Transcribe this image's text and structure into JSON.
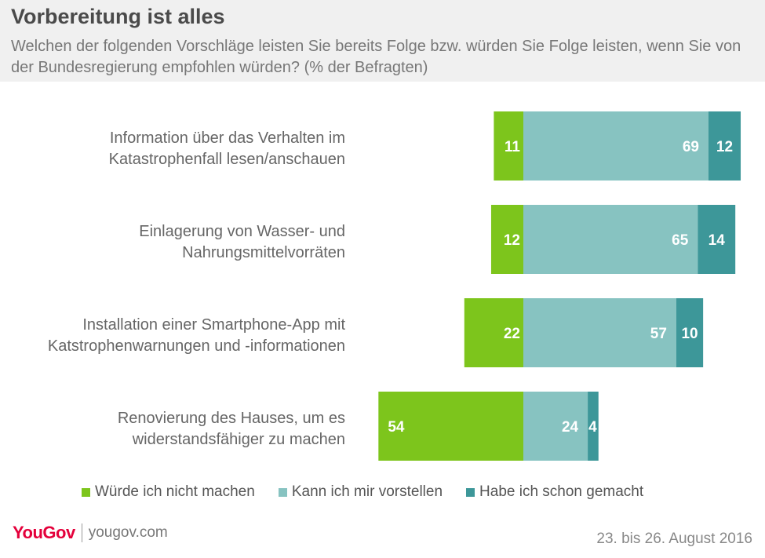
{
  "header": {
    "title": "Vorbereitung ist alles",
    "subtitle": "Welchen der folgenden Vorschläge leisten Sie bereits Folge bzw. würden Sie Folge leisten, wenn Sie von der Bundesregierung empfohlen würden? (% der Befragten)"
  },
  "chart_data": {
    "type": "bar",
    "orientation": "horizontal",
    "stacked": true,
    "categories": [
      [
        "Information über das Verhalten im",
        "Katastrophenfall lesen/anschauen"
      ],
      [
        "Einlagerung von Wasser- und",
        "Nahrungsmittelvorräten"
      ],
      [
        "Installation einer Smartphone-App mit",
        "Katstrophenwarnungen und -informationen"
      ],
      [
        "Renovierung des Hauses, um es",
        "widerstandsfähiger zu machen"
      ]
    ],
    "series": [
      {
        "name": "Würde ich nicht machen",
        "color": "#7dc51c",
        "values": [
          11,
          12,
          22,
          54
        ]
      },
      {
        "name": "Kann ich mir vorstellen",
        "color": "#87c3c1",
        "values": [
          69,
          65,
          57,
          24
        ]
      },
      {
        "name": "Habe ich schon gemacht",
        "color": "#3d9799",
        "values": [
          12,
          14,
          10,
          4
        ]
      }
    ],
    "grid": false,
    "legend_position": "bottom"
  },
  "footer": {
    "logo": "YouGov",
    "url": "yougov.com",
    "date": "23. bis 26. August 2016"
  }
}
